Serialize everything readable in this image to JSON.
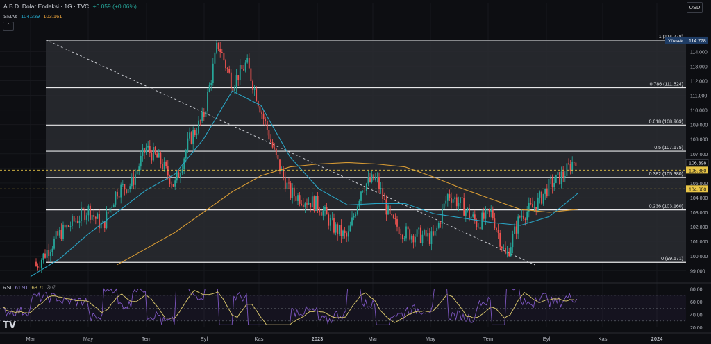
{
  "header": {
    "title": "A.B.D. Dolar Endeksi · 1G · TVC",
    "change": "+0.059 (+0.06%)",
    "sma_label": "SMAs",
    "sma1_value": "104.339",
    "sma2_value": "103.161",
    "collapse_glyph": "⌃"
  },
  "currency_button": "USD",
  "rsi": {
    "label": "RSI",
    "value1": "61.91",
    "value2": "68.70",
    "extra": "∅ ∅",
    "ticks": [
      "80.00",
      "60.00",
      "40.00",
      "20.00"
    ]
  },
  "logo_text": "TV",
  "colors": {
    "background": "#0d0e12",
    "fib_zone": "#2a2b31",
    "bull": "#26a69a",
    "bear": "#ef5350",
    "sma_fast": "#2aa4c4",
    "sma_slow": "#d69a34",
    "rsi_line": "#7e57c2",
    "rsi_ma": "#d4c26a",
    "price_line": "#e8c547"
  },
  "chart_data": {
    "type": "candlestick",
    "y_axis_ticks": [
      114.0,
      113.0,
      112.0,
      111.0,
      110.0,
      109.0,
      108.0,
      107.0,
      106.0,
      105.0,
      104.0,
      103.0,
      102.0,
      101.0,
      100.0,
      99.0
    ],
    "ylim": [
      98.3,
      116.2
    ],
    "x_tick_labels": [
      "Mar",
      "May",
      "Tem",
      "Eyl",
      "Kas",
      "2023",
      "Mar",
      "May",
      "Tem",
      "Eyl",
      "Kas",
      "2024"
    ],
    "fib_levels": [
      {
        "ratio": "1",
        "value": 114.778,
        "label": "1 (114.778)"
      },
      {
        "ratio": "0.786",
        "value": 111.524,
        "label": "0.786 (111.524)"
      },
      {
        "ratio": "0.618",
        "value": 108.969,
        "label": "0.618 (108.969)"
      },
      {
        "ratio": "0.5",
        "value": 107.175,
        "label": "0.5 (107.175)"
      },
      {
        "ratio": "0.382",
        "value": 105.38,
        "label": "0.382 (105.380)"
      },
      {
        "ratio": "0.236",
        "value": 103.16,
        "label": "0.236 (103.160)"
      },
      {
        "ratio": "0",
        "value": 99.571,
        "label": "0 (99.571)"
      }
    ],
    "high_tag": {
      "label": "Yüksek",
      "value": "114.778"
    },
    "price_tags": [
      {
        "value": "106.398",
        "role": "last"
      },
      {
        "value": "105.880",
        "role": "level"
      },
      {
        "value": "104.600",
        "role": "level"
      }
    ],
    "dashed_levels": [
      105.88,
      104.6
    ],
    "trendline": {
      "from": [
        "Mar",
        114.8
      ],
      "to": [
        "Eyl",
        99.4
      ]
    },
    "price_path": [
      [
        "2022-02",
        99.6
      ],
      [
        "2022-03",
        98.8
      ],
      [
        "2022-04",
        101.5
      ],
      [
        "2022-05",
        103.2
      ],
      [
        "2022-05b",
        102.0
      ],
      [
        "2022-06",
        104.5
      ],
      [
        "2022-06b",
        104.9
      ],
      [
        "2022-07",
        107.4
      ],
      [
        "2022-07b",
        106.5
      ],
      [
        "2022-08",
        104.8
      ],
      [
        "2022-08b",
        107.9
      ],
      [
        "2022-09",
        109.5
      ],
      [
        "2022-09b",
        114.6
      ],
      [
        "2022-10",
        111.8
      ],
      [
        "2022-10b",
        113.2
      ],
      [
        "2022-11",
        110.0
      ],
      [
        "2022-11b",
        106.8
      ],
      [
        "2022-12",
        104.3
      ],
      [
        "2023-01",
        103.5
      ],
      [
        "2023-01b",
        102.0
      ],
      [
        "2023-02",
        101.2
      ],
      [
        "2023-02b",
        104.8
      ],
      [
        "2023-03",
        105.3
      ],
      [
        "2023-03b",
        102.4
      ],
      [
        "2023-04",
        101.6
      ],
      [
        "2023-05",
        101.2
      ],
      [
        "2023-05b",
        104.3
      ],
      [
        "2023-06",
        103.4
      ],
      [
        "2023-06b",
        102.2
      ],
      [
        "2023-07",
        103.0
      ],
      [
        "2023-07b",
        99.9
      ],
      [
        "2023-08",
        102.8
      ],
      [
        "2023-08b",
        103.4
      ],
      [
        "2023-09",
        104.8
      ],
      [
        "2023-09b",
        105.6
      ],
      [
        "2023-10",
        106.9
      ],
      [
        "2023-10b",
        106.4
      ]
    ],
    "sma_fast_path": [
      [
        "2022-03",
        98.6
      ],
      [
        "2022-04",
        99.8
      ],
      [
        "2022-05",
        101.5
      ],
      [
        "2022-06",
        103.0
      ],
      [
        "2022-07",
        104.5
      ],
      [
        "2022-08",
        105.6
      ],
      [
        "2022-09",
        108.0
      ],
      [
        "2022-10",
        111.3
      ],
      [
        "2022-11",
        110.3
      ],
      [
        "2022-12",
        106.8
      ],
      [
        "2023-01",
        104.6
      ],
      [
        "2023-02",
        103.5
      ],
      [
        "2023-03",
        103.6
      ],
      [
        "2023-04",
        103.6
      ],
      [
        "2023-05",
        102.9
      ],
      [
        "2023-06",
        102.6
      ],
      [
        "2023-07",
        102.3
      ],
      [
        "2023-08",
        102.1
      ],
      [
        "2023-09",
        102.7
      ],
      [
        "2023-10",
        104.3
      ]
    ],
    "sma_slow_path": [
      [
        "2022-06",
        99.4
      ],
      [
        "2022-07",
        100.5
      ],
      [
        "2022-08",
        101.6
      ],
      [
        "2022-09",
        103.0
      ],
      [
        "2022-10",
        104.4
      ],
      [
        "2022-11",
        105.5
      ],
      [
        "2022-12",
        106.1
      ],
      [
        "2023-01",
        106.3
      ],
      [
        "2023-02",
        106.4
      ],
      [
        "2023-03",
        106.3
      ],
      [
        "2023-04",
        106.1
      ],
      [
        "2023-05",
        105.4
      ],
      [
        "2023-06",
        104.6
      ],
      [
        "2023-07",
        103.9
      ],
      [
        "2023-08",
        103.2
      ],
      [
        "2023-09",
        103.0
      ],
      [
        "2023-10",
        103.2
      ]
    ],
    "rsi_levels": [
      70,
      50,
      30
    ],
    "rsi_ylim": [
      20,
      85
    ]
  }
}
